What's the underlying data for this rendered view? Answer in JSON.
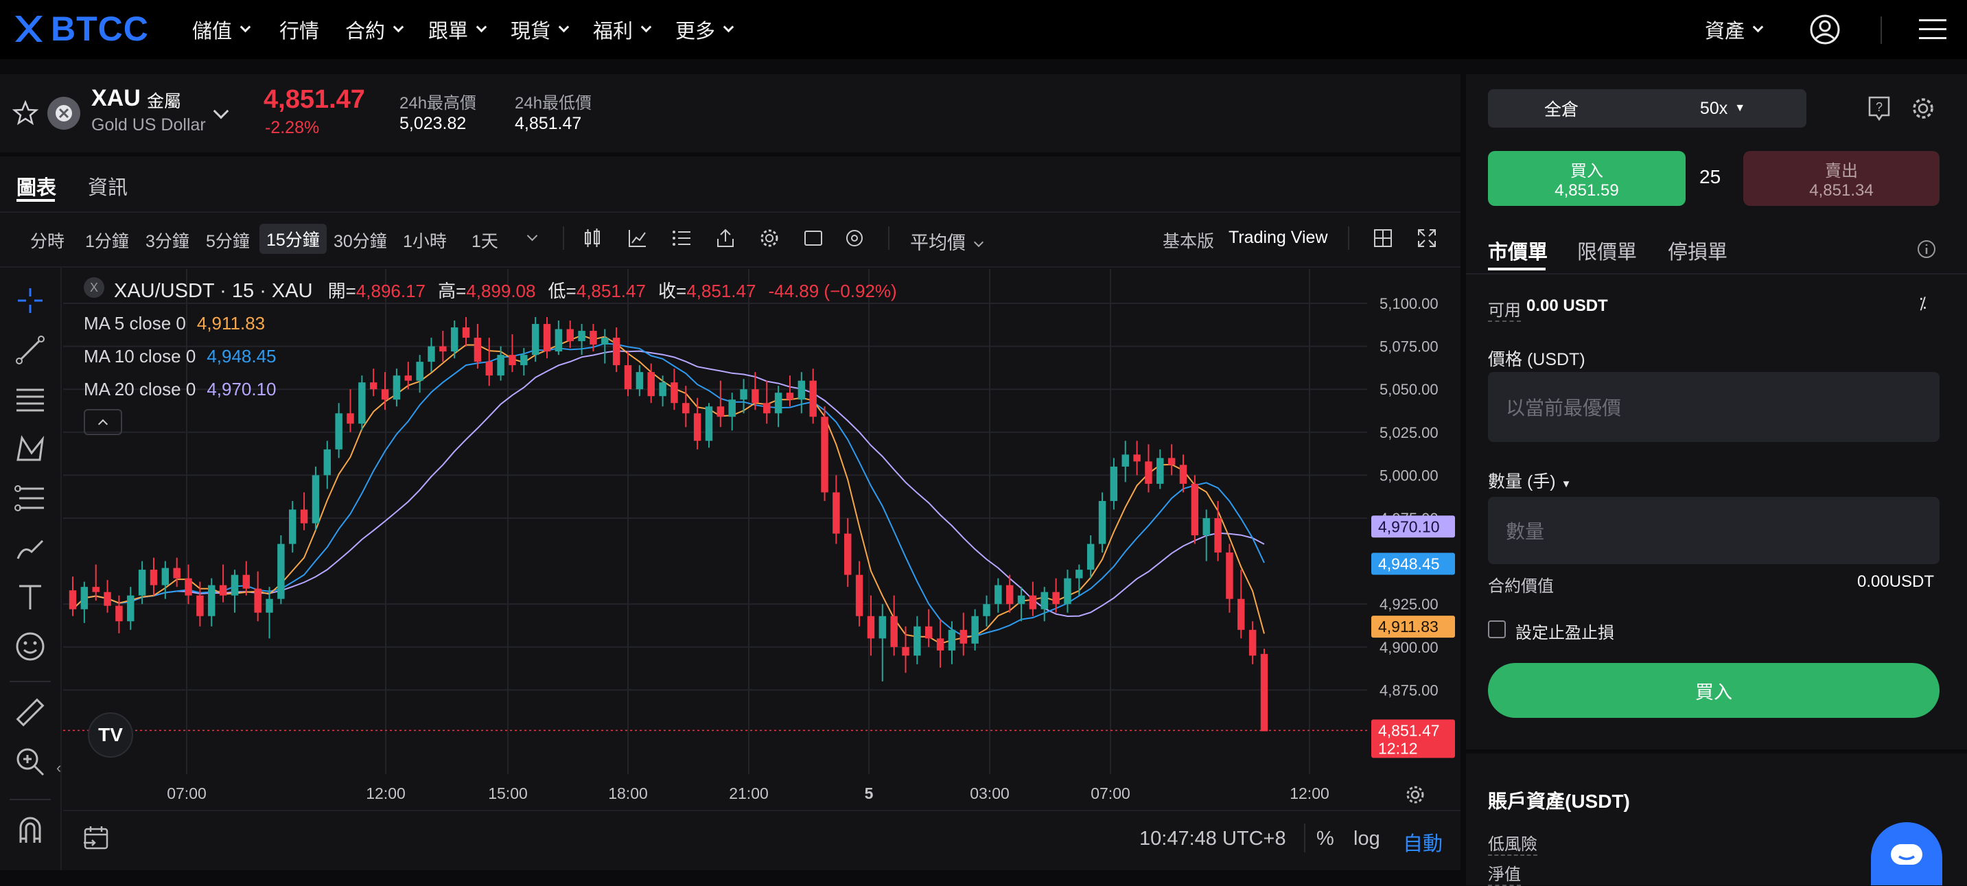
{
  "nav": {
    "brand": "BTCC",
    "items": [
      "儲值",
      "行情",
      "合約",
      "跟單",
      "現貨",
      "福利",
      "更多"
    ],
    "assets": "資產"
  },
  "ticker": {
    "symbol": "XAU",
    "category": "金屬",
    "name": "Gold US Dollar",
    "price": "4,851.47",
    "change": "-2.28%",
    "high_label": "24h最高價",
    "high_value": "5,023.82",
    "low_label": "24h最低價",
    "low_value": "4,851.47"
  },
  "chart_tabs": [
    "圖表",
    "資訊"
  ],
  "timeframes": [
    "分時",
    "1分鐘",
    "3分鐘",
    "5分鐘",
    "15分鐘",
    "30分鐘",
    "1小時",
    "1天"
  ],
  "selected_timeframe": "15分鐘",
  "price_type": "平均價",
  "view_basic": "基本版",
  "view_tv": "Trading View",
  "legend": {
    "title": "XAU/USDT · 15 · XAU",
    "open_label": "開=",
    "open": "4,896.17",
    "high_label": "高=",
    "high": "4,899.08",
    "low_label": "低=",
    "low": "4,851.47",
    "close_label": "收=",
    "close": "4,851.47",
    "change": "-44.89 (−0.92%)",
    "ma5_label": "MA 5 close 0",
    "ma5": "4,911.83",
    "ma10_label": "MA 10 close 0",
    "ma10": "4,948.45",
    "ma20_label": "MA 20 close 0",
    "ma20": "4,970.10"
  },
  "price_axis": [
    "5,100.00",
    "5,075.00",
    "5,050.00",
    "5,025.00",
    "5,000.00",
    "4,975.00",
    "4,925.00",
    "4,900.00",
    "4,875.00"
  ],
  "time_axis": [
    "07:00",
    "12:00",
    "15:00",
    "18:00",
    "21:00",
    "5",
    "03:00",
    "07:00",
    "12:00"
  ],
  "axis_badges": {
    "ma20": "4,970.10",
    "ma10": "4,948.45",
    "ma5": "4,911.83",
    "last": "4,851.47",
    "countdown": "12:12"
  },
  "footer": {
    "time": "10:47:48 UTC+8",
    "pct": "%",
    "log": "log",
    "auto": "自動"
  },
  "colors": {
    "up": "#26a69a",
    "down": "#f23645",
    "ma5": "#f7a64a",
    "ma10": "#2e9bf0",
    "ma20": "#b7a7ff",
    "buy": "#2fb366",
    "sell": "#4a2128",
    "brand": "#2a73ff"
  },
  "chart_data": {
    "type": "candlestick",
    "title": "XAU/USDT · 15 · XAU",
    "ylim": [
      4850,
      5100
    ],
    "series": [
      {
        "name": "MA 5 close 0",
        "last": 4911.83
      },
      {
        "name": "MA 10 close 0",
        "last": 4948.45
      },
      {
        "name": "MA 20 close 0",
        "last": 4970.1
      }
    ],
    "candles": [
      [
        4933,
        4941,
        4918,
        4922
      ],
      [
        4922,
        4938,
        4914,
        4935
      ],
      [
        4935,
        4948,
        4927,
        4932
      ],
      [
        4932,
        4939,
        4920,
        4924
      ],
      [
        4924,
        4930,
        4908,
        4915
      ],
      [
        4915,
        4935,
        4910,
        4930
      ],
      [
        4930,
        4950,
        4925,
        4945
      ],
      [
        4945,
        4952,
        4930,
        4936
      ],
      [
        4936,
        4950,
        4928,
        4946
      ],
      [
        4946,
        4952,
        4935,
        4940
      ],
      [
        4940,
        4948,
        4925,
        4930
      ],
      [
        4930,
        4938,
        4912,
        4918
      ],
      [
        4918,
        4940,
        4912,
        4936
      ],
      [
        4936,
        4948,
        4926,
        4930
      ],
      [
        4930,
        4945,
        4920,
        4942
      ],
      [
        4942,
        4950,
        4930,
        4934
      ],
      [
        4934,
        4944,
        4915,
        4920
      ],
      [
        4920,
        4935,
        4905,
        4928
      ],
      [
        4928,
        4965,
        4925,
        4960
      ],
      [
        4960,
        4985,
        4955,
        4980
      ],
      [
        4980,
        4990,
        4968,
        4972
      ],
      [
        4972,
        5005,
        4968,
        5000
      ],
      [
        5000,
        5020,
        4992,
        5015
      ],
      [
        5015,
        5042,
        5010,
        5036
      ],
      [
        5036,
        5050,
        5025,
        5030
      ],
      [
        5030,
        5058,
        5026,
        5054
      ],
      [
        5054,
        5062,
        5046,
        5050
      ],
      [
        5050,
        5060,
        5038,
        5044
      ],
      [
        5044,
        5062,
        5040,
        5058
      ],
      [
        5058,
        5066,
        5050,
        5055
      ],
      [
        5055,
        5070,
        5048,
        5066
      ],
      [
        5066,
        5080,
        5060,
        5075
      ],
      [
        5075,
        5084,
        5066,
        5072
      ],
      [
        5072,
        5090,
        5068,
        5086
      ],
      [
        5086,
        5092,
        5075,
        5080
      ],
      [
        5080,
        5088,
        5062,
        5066
      ],
      [
        5066,
        5080,
        5052,
        5058
      ],
      [
        5058,
        5075,
        5055,
        5070
      ],
      [
        5070,
        5082,
        5060,
        5064
      ],
      [
        5064,
        5074,
        5058,
        5070
      ],
      [
        5070,
        5092,
        5066,
        5088
      ],
      [
        5088,
        5092,
        5068,
        5072
      ],
      [
        5072,
        5090,
        5070,
        5085
      ],
      [
        5085,
        5090,
        5074,
        5078
      ],
      [
        5078,
        5088,
        5070,
        5084
      ],
      [
        5084,
        5088,
        5072,
        5076
      ],
      [
        5076,
        5085,
        5065,
        5080
      ],
      [
        5080,
        5086,
        5060,
        5064
      ],
      [
        5064,
        5072,
        5046,
        5050
      ],
      [
        5050,
        5064,
        5046,
        5060
      ],
      [
        5060,
        5065,
        5042,
        5046
      ],
      [
        5046,
        5058,
        5040,
        5054
      ],
      [
        5054,
        5062,
        5038,
        5042
      ],
      [
        5042,
        5052,
        5028,
        5036
      ],
      [
        5036,
        5045,
        5015,
        5020
      ],
      [
        5020,
        5042,
        5016,
        5040
      ],
      [
        5040,
        5055,
        5028,
        5034
      ],
      [
        5034,
        5048,
        5026,
        5044
      ],
      [
        5044,
        5056,
        5036,
        5050
      ],
      [
        5050,
        5060,
        5038,
        5042
      ],
      [
        5042,
        5055,
        5030,
        5036
      ],
      [
        5036,
        5052,
        5028,
        5048
      ],
      [
        5048,
        5058,
        5040,
        5044
      ],
      [
        5044,
        5060,
        5036,
        5055
      ],
      [
        5055,
        5062,
        5030,
        5034
      ],
      [
        5034,
        5040,
        4985,
        4990
      ],
      [
        4990,
        5000,
        4960,
        4966
      ],
      [
        4966,
        4975,
        4935,
        4942
      ],
      [
        4942,
        4950,
        4912,
        4918
      ],
      [
        4918,
        4930,
        4895,
        4905
      ],
      [
        4905,
        4925,
        4880,
        4918
      ],
      [
        4918,
        4930,
        4895,
        4900
      ],
      [
        4900,
        4912,
        4885,
        4895
      ],
      [
        4895,
        4918,
        4890,
        4912
      ],
      [
        4912,
        4922,
        4900,
        4905
      ],
      [
        4905,
        4916,
        4888,
        4898
      ],
      [
        4898,
        4915,
        4890,
        4910
      ],
      [
        4910,
        4920,
        4895,
        4902
      ],
      [
        4902,
        4922,
        4898,
        4918
      ],
      [
        4918,
        4930,
        4912,
        4925
      ],
      [
        4925,
        4940,
        4920,
        4936
      ],
      [
        4936,
        4942,
        4920,
        4925
      ],
      [
        4925,
        4935,
        4915,
        4930
      ],
      [
        4930,
        4938,
        4918,
        4922
      ],
      [
        4922,
        4935,
        4915,
        4932
      ],
      [
        4932,
        4940,
        4920,
        4925
      ],
      [
        4925,
        4945,
        4920,
        4940
      ],
      [
        4940,
        4948,
        4930,
        4945
      ],
      [
        4945,
        4965,
        4940,
        4960
      ],
      [
        4960,
        4990,
        4955,
        4985
      ],
      [
        4985,
        5010,
        4980,
        5005
      ],
      [
        5005,
        5020,
        4996,
        5012
      ],
      [
        5012,
        5020,
        5000,
        5008
      ],
      [
        5008,
        5018,
        4990,
        4995
      ],
      [
        4995,
        5015,
        4992,
        5010
      ],
      [
        5010,
        5018,
        5000,
        5006
      ],
      [
        5006,
        5012,
        4990,
        4995
      ],
      [
        4995,
        5000,
        4960,
        4965
      ],
      [
        4965,
        4980,
        4950,
        4975
      ],
      [
        4975,
        4985,
        4950,
        4955
      ],
      [
        4955,
        4960,
        4920,
        4928
      ],
      [
        4928,
        4945,
        4905,
        4910
      ],
      [
        4910,
        4915,
        4890,
        4895
      ],
      [
        4896,
        4899,
        4851,
        4851
      ]
    ]
  },
  "order": {
    "margin_mode": "全倉",
    "leverage": "50x",
    "buy_label": "買入",
    "buy_price": "4,851.59",
    "spread": "25",
    "sell_label": "賣出",
    "sell_price": "4,851.34",
    "tabs": [
      "市價單",
      "限價單",
      "停損單"
    ],
    "available_label": "可用",
    "available_value": "0.00 USDT",
    "price_label": "價格 (USDT)",
    "price_placeholder": "以當前最優價",
    "qty_label": "數量 (手)",
    "qty_placeholder": "數量",
    "contract_value_label": "合約價值",
    "contract_value": "0.00USDT",
    "tpsl_label": "設定止盈止損",
    "submit_label": "買入"
  },
  "account": {
    "title": "賬戶資產(USDT)",
    "risk_label": "低風險",
    "equity_label": "淨值"
  }
}
